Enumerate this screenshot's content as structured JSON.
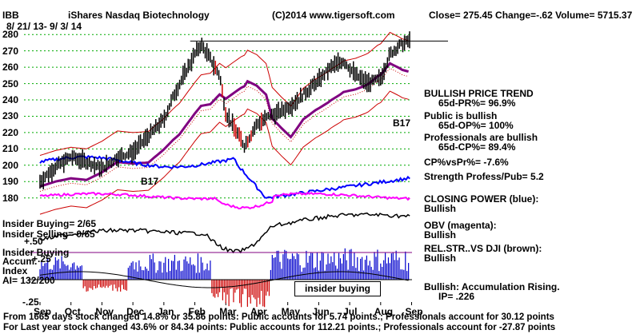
{
  "header": {
    "symbol": "IBB",
    "title": "iShares Nasdaq Biotechnology",
    "copyright": "(C)2014 www.tigersoft.com",
    "quote": "Close=  275.45  Change=-.62 Volume=  5715.37",
    "date_range": "8/ 21/ 13-  9/ 3/ 14"
  },
  "chart_data": {
    "type": "line",
    "title": "iShares Nasdaq Biotechnology",
    "y_ticks": [
      280,
      270,
      260,
      250,
      240,
      230,
      220,
      210,
      200,
      190,
      180
    ],
    "ylim": [
      173,
      285
    ],
    "x_labels": [
      "Sep",
      "Oct",
      "Nov",
      "Dec",
      "Jan",
      "Feb",
      "Mar",
      "Apr",
      "May",
      "Jun",
      "Jul",
      "Aug",
      "Sep"
    ],
    "grid": true,
    "price_series": {
      "name": "IBB",
      "x_months": [
        0,
        0.5,
        1,
        1.5,
        2,
        2.5,
        3,
        3.5,
        4,
        4.3,
        4.7,
        5,
        5.2,
        5.5,
        5.8,
        6,
        6.3,
        6.6,
        7,
        7.4,
        7.8,
        8.2,
        8.6,
        9,
        9.4,
        9.8,
        10.2,
        10.6,
        11,
        11.3,
        11.6,
        11.9
      ],
      "values": [
        190,
        199,
        205,
        202,
        198,
        205,
        208,
        218,
        228,
        242,
        257,
        268,
        274,
        265,
        255,
        232,
        222,
        212,
        225,
        230,
        233,
        238,
        245,
        252,
        260,
        264,
        255,
        250,
        253,
        268,
        273,
        276
      ]
    },
    "resistance_line": 276,
    "annotations": [
      "B17",
      "B17"
    ]
  },
  "indicators": {
    "bullish_trend": "BULLISH PRICE TREND",
    "pr": "65d-PR%= 96.9%",
    "public_bullish": "Public is bullish",
    "op": "65d-OP%= 100%",
    "prof_bullish": "Professionals are bullish",
    "cp": "65d-CP%= 89.4%",
    "cpvspr": "CP%vsPr%= -7.6%",
    "strength": "Strength Profess/Pub= 5.2",
    "closing_power": "CLOSING POWER (blue):",
    "cp_bullish": "Bullish",
    "obv": "OBV (magenta):",
    "obv_bullish": "Bullish",
    "relstr": "REL.STR..VS DJI (brown):",
    "relstr_bullish": "Bullish",
    "accum": "Bullish: Accumulation Rising.",
    "ip": "IP=  .226"
  },
  "insider": {
    "buying": "Insider Buying= 2/65",
    "selling": "Insider Selling= 0/65",
    "plus50": "+.50",
    "ins_buying_label": "Insider Buying",
    "accum_label": "Accum.",
    "plus25": "+.25",
    "index_label": "Index",
    "ai": "AI= 132/200",
    "minus25": "-.25",
    "box_label": "insider buying"
  },
  "footer": {
    "line1": "From 1665 days stock changed  14.8% or  35.86 points:  Public accounts for  5.74 points.;  Professionals account for  30.12 points",
    "line2": "For Last year stock changed  43.6% or  84.34 points:  Public accounts for  112.21 points.;  Professionals account for -27.87 points"
  },
  "colors": {
    "price": "#000000",
    "bands": "#cc0000",
    "ma": "#800080",
    "closing_power": "#0000ff",
    "obv": "#ff00ff",
    "relstr": "#000000",
    "accum_pos": "#0000cc",
    "accum_neg": "#cc0000",
    "grid": "#00aa00"
  }
}
